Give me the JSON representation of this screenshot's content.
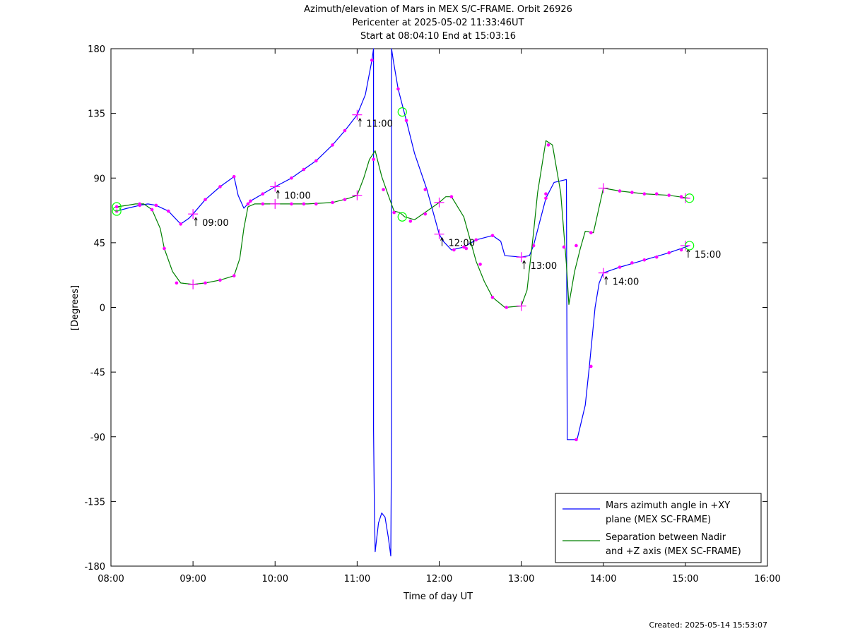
{
  "title": {
    "line1": "Azimuth/elevation of Mars in MEX S/C-FRAME.  Orbit 26926",
    "line2": "Pericenter at 2025-05-02 11:33:46UT",
    "line3": "Start at 08:04:10 End at 15:03:16"
  },
  "footer": "Created: 2025-05-14 15:53:07",
  "colors": {
    "azimuth": "#0000ff",
    "separation": "#008000",
    "markers": "#ff00ff",
    "circles": "#00ff00"
  },
  "chart_data": {
    "type": "line",
    "xlabel": "Time of day UT",
    "ylabel": "[Degrees]",
    "xlim": [
      8,
      16
    ],
    "ylim": [
      -180,
      180
    ],
    "xticks": [
      {
        "v": 8,
        "label": "08:00"
      },
      {
        "v": 9,
        "label": "09:00"
      },
      {
        "v": 10,
        "label": "10:00"
      },
      {
        "v": 11,
        "label": "11:00"
      },
      {
        "v": 12,
        "label": "12:00"
      },
      {
        "v": 13,
        "label": "13:00"
      },
      {
        "v": 14,
        "label": "14:00"
      },
      {
        "v": 15,
        "label": "15:00"
      },
      {
        "v": 16,
        "label": "16:00"
      }
    ],
    "yticks": [
      {
        "v": 180,
        "label": "180"
      },
      {
        "v": 135,
        "label": "135"
      },
      {
        "v": 90,
        "label": "90"
      },
      {
        "v": 45,
        "label": "45"
      },
      {
        "v": 0,
        "label": "0"
      },
      {
        "v": -45,
        "label": "-45"
      },
      {
        "v": -90,
        "label": "-90"
      },
      {
        "v": -135,
        "label": "-135"
      },
      {
        "v": -180,
        "label": "-180"
      }
    ],
    "legend": {
      "position": "bottom-right",
      "entries": [
        {
          "lines": [
            "Mars azimuth angle in +XY",
            "plane (MEX SC-FRAME)"
          ]
        },
        {
          "lines": [
            "Separation between Nadir",
            "and +Z axis (MEX SC-FRAME)"
          ]
        }
      ]
    },
    "series": [
      {
        "key": "azimuth",
        "points": [
          [
            8.07,
            67
          ],
          [
            8.2,
            69
          ],
          [
            8.35,
            71
          ],
          [
            8.45,
            72
          ],
          [
            8.55,
            71
          ],
          [
            8.7,
            67
          ],
          [
            8.85,
            58
          ],
          [
            8.95,
            62
          ],
          [
            9.0,
            65
          ],
          [
            9.15,
            75
          ],
          [
            9.33,
            84
          ],
          [
            9.5,
            91
          ],
          [
            9.55,
            78
          ],
          [
            9.62,
            69
          ],
          [
            9.7,
            74
          ],
          [
            9.85,
            79
          ],
          [
            10.0,
            84
          ],
          [
            10.2,
            90
          ],
          [
            10.35,
            96
          ],
          [
            10.5,
            102
          ],
          [
            10.7,
            113
          ],
          [
            10.85,
            123
          ],
          [
            11.0,
            134
          ],
          [
            11.1,
            148
          ],
          [
            11.18,
            172
          ],
          [
            11.2,
            180
          ],
          [
            11.2,
            -85
          ],
          [
            11.21,
            -140
          ],
          [
            11.22,
            -170
          ],
          [
            11.26,
            -150
          ],
          [
            11.3,
            -143
          ],
          [
            11.34,
            -146
          ],
          [
            11.38,
            -160
          ],
          [
            11.41,
            -173
          ],
          [
            11.42,
            -85
          ],
          [
            11.42,
            180
          ],
          [
            11.44,
            172
          ],
          [
            11.5,
            152
          ],
          [
            11.6,
            130
          ],
          [
            11.7,
            107
          ],
          [
            11.85,
            82
          ],
          [
            12.0,
            51
          ],
          [
            12.05,
            46
          ],
          [
            12.15,
            40
          ],
          [
            12.3,
            42
          ],
          [
            12.45,
            47
          ],
          [
            12.65,
            50
          ],
          [
            12.75,
            46
          ],
          [
            12.8,
            36
          ],
          [
            13.0,
            35
          ],
          [
            13.1,
            36
          ],
          [
            13.15,
            43
          ],
          [
            13.3,
            76
          ],
          [
            13.4,
            87
          ],
          [
            13.55,
            89
          ],
          [
            13.56,
            -92
          ],
          [
            13.68,
            -92
          ],
          [
            13.78,
            -68
          ],
          [
            13.83,
            -41
          ],
          [
            13.9,
            0
          ],
          [
            13.95,
            17
          ],
          [
            14.0,
            24
          ],
          [
            14.2,
            28
          ],
          [
            14.5,
            33
          ],
          [
            14.8,
            38
          ],
          [
            15.05,
            43
          ]
        ],
        "markers": [
          [
            8.07,
            67
          ],
          [
            8.35,
            71
          ],
          [
            8.55,
            71
          ],
          [
            8.7,
            67
          ],
          [
            8.85,
            58
          ],
          [
            9.15,
            75
          ],
          [
            9.33,
            84
          ],
          [
            9.5,
            91
          ],
          [
            9.7,
            74
          ],
          [
            9.85,
            79
          ],
          [
            10.2,
            90
          ],
          [
            10.35,
            96
          ],
          [
            10.5,
            102
          ],
          [
            10.7,
            113
          ],
          [
            10.85,
            123
          ],
          [
            11.18,
            172
          ],
          [
            11.5,
            152
          ],
          [
            11.6,
            130
          ],
          [
            11.83,
            82
          ],
          [
            12.18,
            40
          ],
          [
            12.3,
            42
          ],
          [
            12.45,
            47
          ],
          [
            12.65,
            50
          ],
          [
            13.15,
            43
          ],
          [
            13.3,
            76
          ],
          [
            13.85,
            -41
          ],
          [
            13.67,
            -92
          ],
          [
            14.2,
            28
          ],
          [
            14.35,
            31
          ],
          [
            14.5,
            33
          ],
          [
            14.65,
            35
          ],
          [
            14.8,
            38
          ],
          [
            14.95,
            40
          ]
        ],
        "hour_marks": [
          [
            9.0,
            65,
            "09:00"
          ],
          [
            10.0,
            84,
            "10:00"
          ],
          [
            11.0,
            134,
            "11:00"
          ],
          [
            12.0,
            51,
            "12:00"
          ],
          [
            13.0,
            35,
            "13:00"
          ],
          [
            14.0,
            24,
            "14:00"
          ],
          [
            15.0,
            43,
            "15:00"
          ]
        ],
        "circles": [
          [
            8.07,
            67
          ],
          [
            15.05,
            43
          ]
        ]
      },
      {
        "key": "separation",
        "points": [
          [
            8.07,
            70
          ],
          [
            8.2,
            71
          ],
          [
            8.3,
            72
          ],
          [
            8.4,
            72
          ],
          [
            8.5,
            68
          ],
          [
            8.6,
            55
          ],
          [
            8.65,
            41
          ],
          [
            8.75,
            25
          ],
          [
            8.85,
            17
          ],
          [
            9.0,
            16
          ],
          [
            9.15,
            17
          ],
          [
            9.33,
            19
          ],
          [
            9.5,
            22
          ],
          [
            9.57,
            34
          ],
          [
            9.62,
            55
          ],
          [
            9.67,
            70
          ],
          [
            9.75,
            72
          ],
          [
            10.0,
            72
          ],
          [
            10.4,
            72
          ],
          [
            10.7,
            73
          ],
          [
            10.9,
            76
          ],
          [
            11.0,
            78
          ],
          [
            11.08,
            90
          ],
          [
            11.15,
            103
          ],
          [
            11.22,
            109
          ],
          [
            11.3,
            91
          ],
          [
            11.38,
            78
          ],
          [
            11.45,
            67
          ],
          [
            11.52,
            66
          ],
          [
            11.58,
            63
          ],
          [
            11.7,
            61
          ],
          [
            11.85,
            67
          ],
          [
            12.0,
            73
          ],
          [
            12.08,
            77
          ],
          [
            12.15,
            77
          ],
          [
            12.3,
            63
          ],
          [
            12.45,
            32
          ],
          [
            12.55,
            18
          ],
          [
            12.65,
            7
          ],
          [
            12.8,
            0
          ],
          [
            13.0,
            1
          ],
          [
            13.07,
            12
          ],
          [
            13.15,
            52
          ],
          [
            13.2,
            80
          ],
          [
            13.3,
            116
          ],
          [
            13.38,
            113
          ],
          [
            13.48,
            80
          ],
          [
            13.55,
            30
          ],
          [
            13.58,
            2
          ],
          [
            13.65,
            25
          ],
          [
            13.72,
            41
          ],
          [
            13.78,
            53
          ],
          [
            13.88,
            52
          ],
          [
            13.95,
            70
          ],
          [
            14.0,
            83
          ],
          [
            14.2,
            81
          ],
          [
            14.5,
            79
          ],
          [
            14.8,
            78
          ],
          [
            15.05,
            76
          ]
        ],
        "markers": [
          [
            8.07,
            70
          ],
          [
            8.35,
            72
          ],
          [
            8.5,
            68
          ],
          [
            8.65,
            41
          ],
          [
            8.8,
            17
          ],
          [
            9.15,
            17
          ],
          [
            9.33,
            19
          ],
          [
            9.5,
            22
          ],
          [
            9.67,
            72
          ],
          [
            9.85,
            72
          ],
          [
            10.2,
            72
          ],
          [
            10.35,
            72
          ],
          [
            10.5,
            72
          ],
          [
            10.7,
            73
          ],
          [
            10.85,
            75
          ],
          [
            11.2,
            103
          ],
          [
            11.32,
            82
          ],
          [
            11.45,
            66
          ],
          [
            11.65,
            60
          ],
          [
            11.83,
            65
          ],
          [
            12.15,
            77
          ],
          [
            12.33,
            41
          ],
          [
            12.5,
            30
          ],
          [
            12.65,
            7
          ],
          [
            12.82,
            0
          ],
          [
            13.3,
            79
          ],
          [
            13.33,
            113
          ],
          [
            13.52,
            42
          ],
          [
            13.67,
            43
          ],
          [
            13.85,
            52
          ],
          [
            14.2,
            81
          ],
          [
            14.35,
            80
          ],
          [
            14.5,
            79
          ],
          [
            14.65,
            79
          ],
          [
            14.8,
            78
          ],
          [
            14.95,
            77
          ]
        ],
        "hour_marks": [
          [
            9.0,
            16,
            ""
          ],
          [
            10.0,
            72,
            ""
          ],
          [
            11.0,
            78,
            ""
          ],
          [
            12.0,
            73,
            ""
          ],
          [
            13.0,
            1,
            ""
          ],
          [
            14.0,
            83,
            ""
          ],
          [
            15.0,
            76,
            ""
          ]
        ],
        "circles": [
          [
            8.07,
            70
          ],
          [
            11.55,
            63
          ],
          [
            11.55,
            136
          ],
          [
            15.05,
            76
          ]
        ]
      }
    ]
  }
}
